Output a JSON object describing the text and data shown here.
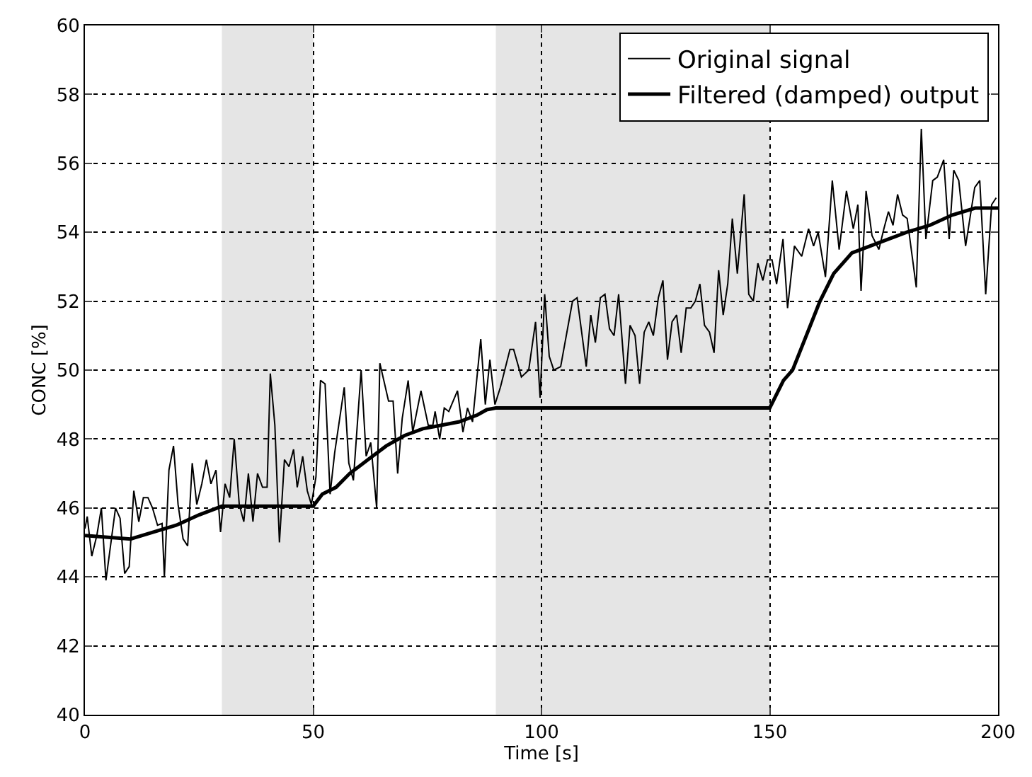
{
  "chart_data": {
    "type": "line",
    "xlabel": "Time [s]",
    "ylabel": "CONC [%]",
    "xlim": [
      0,
      200
    ],
    "ylim": [
      40,
      60
    ],
    "xticks": [
      0,
      50,
      100,
      150,
      200
    ],
    "yticks": [
      40,
      42,
      44,
      46,
      48,
      50,
      52,
      54,
      56,
      58,
      60
    ],
    "grid": true,
    "legend": "top right",
    "line_style": "solid",
    "bands": [
      {
        "axis": "x",
        "from": 30,
        "to": 50,
        "color": "#e5e5e5"
      },
      {
        "axis": "x",
        "from": 90,
        "to": 150,
        "color": "#e5e5e5"
      }
    ],
    "series": [
      {
        "name": "Original signal",
        "color": "#000000",
        "x": [
          0,
          0.5,
          1.5,
          2.6,
          3.6,
          4.6,
          6.7,
          7.7,
          8.7,
          9.7,
          10.7,
          11.8,
          12.8,
          13.8,
          14.8,
          15.9,
          16.9,
          17.4,
          18.4,
          19.4,
          20.4,
          21.5,
          22.5,
          23.5,
          24.5,
          25.6,
          26.6,
          27.6,
          28.7,
          29.7,
          30.7,
          31.7,
          32.7,
          33.8,
          34.8,
          35.8,
          36.8,
          37.8,
          38.9,
          39.9,
          40.6,
          41.6,
          42.6,
          43.7,
          44.7,
          45.7,
          46.5,
          47.7,
          48.7,
          49.6,
          50.6,
          51.6,
          52.6,
          53.7,
          54.7,
          56.8,
          57.8,
          58.8,
          60.5,
          61.6,
          62.6,
          63.9,
          64.6,
          66.5,
          67.5,
          68.5,
          69.5,
          70.8,
          71.8,
          73.6,
          75.2,
          76.2,
          76.7,
          77.7,
          78.7,
          79.7,
          81.6,
          82.8,
          83.8,
          84.9,
          86.7,
          87.7,
          88.7,
          89.8,
          91.0,
          93.1,
          93.9,
          95.6,
          97.2,
          98.7,
          99.7,
          100.7,
          101.7,
          102.7,
          104.2,
          106.8,
          107.8,
          109.8,
          110.8,
          111.8,
          112.9,
          113.9,
          114.9,
          115.9,
          116.9,
          118.4,
          119.4,
          120.5,
          121.5,
          122.5,
          123.5,
          124.5,
          125.6,
          126.6,
          127.6,
          128.6,
          129.6,
          130.6,
          131.7,
          132.7,
          133.7,
          134.7,
          135.7,
          136.8,
          137.8,
          138.8,
          139.8,
          140.8,
          141.8,
          142.9,
          144.4,
          145.4,
          146.4,
          147.4,
          148.5,
          149.5,
          150.5,
          151.5,
          152.9,
          153.9,
          155.4,
          157.0,
          158.5,
          159.6,
          160.6,
          162.2,
          163.7,
          165.2,
          166.8,
          168.3,
          169.3,
          170.0,
          171.1,
          172.4,
          173.9,
          175.0,
          176.0,
          177.0,
          178.0,
          179.1,
          180.1,
          182.1,
          183.2,
          184.2,
          185.7,
          186.7,
          188.1,
          189.3,
          190.3,
          191.4,
          192.9,
          194.9,
          196.0,
          197.3,
          198.6,
          199.6
        ],
        "values": [
          45.4,
          45.75,
          44.6,
          45.2,
          46.0,
          43.9,
          46.0,
          45.7,
          44.1,
          44.3,
          46.5,
          45.6,
          46.3,
          46.3,
          46.0,
          45.5,
          45.55,
          44.0,
          47.1,
          47.8,
          46.1,
          45.1,
          44.9,
          47.3,
          46.1,
          46.7,
          47.4,
          46.7,
          47.1,
          45.3,
          46.7,
          46.3,
          48.0,
          46.1,
          45.6,
          47.0,
          45.6,
          47.0,
          46.6,
          46.6,
          49.9,
          48.4,
          45.0,
          47.4,
          47.2,
          47.7,
          46.6,
          47.5,
          46.5,
          46.1,
          46.9,
          49.7,
          49.6,
          46.4,
          47.6,
          49.5,
          47.3,
          46.8,
          50.0,
          47.5,
          47.9,
          46.0,
          50.2,
          49.1,
          49.1,
          47.0,
          48.6,
          49.7,
          48.2,
          49.4,
          48.4,
          48.4,
          48.8,
          48.0,
          48.9,
          48.8,
          49.4,
          48.2,
          48.9,
          48.5,
          50.9,
          49.0,
          50.3,
          49.0,
          49.5,
          50.6,
          50.6,
          49.8,
          50.0,
          51.4,
          49.2,
          52.2,
          50.4,
          50.0,
          50.1,
          52.0,
          52.1,
          50.1,
          51.6,
          50.8,
          52.1,
          52.2,
          51.2,
          51.0,
          52.2,
          49.6,
          51.3,
          51.0,
          49.6,
          51.1,
          51.4,
          51.0,
          52.1,
          52.6,
          50.3,
          51.4,
          51.6,
          50.5,
          51.8,
          51.8,
          52.0,
          52.5,
          51.3,
          51.1,
          50.5,
          52.9,
          51.6,
          52.5,
          54.4,
          52.8,
          55.1,
          52.2,
          52.0,
          53.1,
          52.6,
          53.2,
          53.2,
          52.5,
          53.8,
          51.8,
          53.6,
          53.3,
          54.1,
          53.6,
          54.0,
          52.7,
          55.5,
          53.5,
          55.2,
          54.1,
          54.8,
          52.3,
          55.2,
          53.9,
          53.5,
          54.1,
          54.6,
          54.2,
          55.1,
          54.5,
          54.4,
          52.4,
          57.0,
          53.8,
          55.5,
          55.6,
          56.1,
          53.8,
          55.8,
          55.5,
          53.6,
          55.3,
          55.5,
          52.2,
          54.8,
          55.0
        ]
      },
      {
        "name": "Filtered (damped) output",
        "color": "#000000",
        "x": [
          0,
          5,
          10,
          15,
          20,
          25,
          30,
          50,
          52,
          55,
          58,
          62,
          66,
          70,
          74,
          78,
          82,
          86,
          88,
          90,
          150,
          153,
          155,
          158,
          161,
          164,
          168,
          172,
          176,
          180,
          185,
          190,
          195,
          200
        ],
        "values": [
          45.2,
          45.15,
          45.1,
          45.3,
          45.5,
          45.8,
          46.05,
          46.05,
          46.4,
          46.6,
          47.0,
          47.4,
          47.8,
          48.1,
          48.3,
          48.4,
          48.5,
          48.7,
          48.85,
          48.9,
          48.9,
          49.7,
          50.0,
          51.0,
          52.0,
          52.8,
          53.4,
          53.6,
          53.8,
          54.0,
          54.2,
          54.5,
          54.7,
          54.7
        ]
      }
    ]
  }
}
